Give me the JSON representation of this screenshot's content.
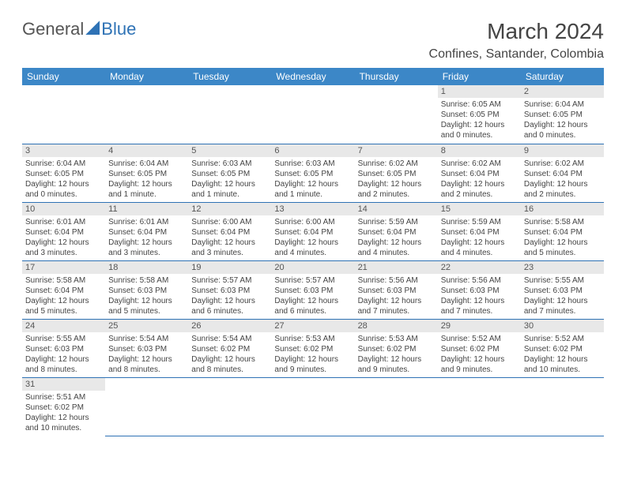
{
  "logo": {
    "text1": "General",
    "text2": "Blue"
  },
  "title": "March 2024",
  "location": "Confines, Santander, Colombia",
  "colors": {
    "header_bg": "#3c87c7",
    "header_text": "#ffffff",
    "daynum_bg": "#e8e8e8",
    "row_border": "#2e72b5",
    "logo_accent": "#2e72b5"
  },
  "weekdays": [
    "Sunday",
    "Monday",
    "Tuesday",
    "Wednesday",
    "Thursday",
    "Friday",
    "Saturday"
  ],
  "calendar": {
    "first_weekday_index": 5,
    "days": [
      {
        "n": 1,
        "sunrise": "6:05 AM",
        "sunset": "6:05 PM",
        "daylight": "12 hours and 0 minutes."
      },
      {
        "n": 2,
        "sunrise": "6:04 AM",
        "sunset": "6:05 PM",
        "daylight": "12 hours and 0 minutes."
      },
      {
        "n": 3,
        "sunrise": "6:04 AM",
        "sunset": "6:05 PM",
        "daylight": "12 hours and 0 minutes."
      },
      {
        "n": 4,
        "sunrise": "6:04 AM",
        "sunset": "6:05 PM",
        "daylight": "12 hours and 1 minute."
      },
      {
        "n": 5,
        "sunrise": "6:03 AM",
        "sunset": "6:05 PM",
        "daylight": "12 hours and 1 minute."
      },
      {
        "n": 6,
        "sunrise": "6:03 AM",
        "sunset": "6:05 PM",
        "daylight": "12 hours and 1 minute."
      },
      {
        "n": 7,
        "sunrise": "6:02 AM",
        "sunset": "6:05 PM",
        "daylight": "12 hours and 2 minutes."
      },
      {
        "n": 8,
        "sunrise": "6:02 AM",
        "sunset": "6:04 PM",
        "daylight": "12 hours and 2 minutes."
      },
      {
        "n": 9,
        "sunrise": "6:02 AM",
        "sunset": "6:04 PM",
        "daylight": "12 hours and 2 minutes."
      },
      {
        "n": 10,
        "sunrise": "6:01 AM",
        "sunset": "6:04 PM",
        "daylight": "12 hours and 3 minutes."
      },
      {
        "n": 11,
        "sunrise": "6:01 AM",
        "sunset": "6:04 PM",
        "daylight": "12 hours and 3 minutes."
      },
      {
        "n": 12,
        "sunrise": "6:00 AM",
        "sunset": "6:04 PM",
        "daylight": "12 hours and 3 minutes."
      },
      {
        "n": 13,
        "sunrise": "6:00 AM",
        "sunset": "6:04 PM",
        "daylight": "12 hours and 4 minutes."
      },
      {
        "n": 14,
        "sunrise": "5:59 AM",
        "sunset": "6:04 PM",
        "daylight": "12 hours and 4 minutes."
      },
      {
        "n": 15,
        "sunrise": "5:59 AM",
        "sunset": "6:04 PM",
        "daylight": "12 hours and 4 minutes."
      },
      {
        "n": 16,
        "sunrise": "5:58 AM",
        "sunset": "6:04 PM",
        "daylight": "12 hours and 5 minutes."
      },
      {
        "n": 17,
        "sunrise": "5:58 AM",
        "sunset": "6:04 PM",
        "daylight": "12 hours and 5 minutes."
      },
      {
        "n": 18,
        "sunrise": "5:58 AM",
        "sunset": "6:03 PM",
        "daylight": "12 hours and 5 minutes."
      },
      {
        "n": 19,
        "sunrise": "5:57 AM",
        "sunset": "6:03 PM",
        "daylight": "12 hours and 6 minutes."
      },
      {
        "n": 20,
        "sunrise": "5:57 AM",
        "sunset": "6:03 PM",
        "daylight": "12 hours and 6 minutes."
      },
      {
        "n": 21,
        "sunrise": "5:56 AM",
        "sunset": "6:03 PM",
        "daylight": "12 hours and 7 minutes."
      },
      {
        "n": 22,
        "sunrise": "5:56 AM",
        "sunset": "6:03 PM",
        "daylight": "12 hours and 7 minutes."
      },
      {
        "n": 23,
        "sunrise": "5:55 AM",
        "sunset": "6:03 PM",
        "daylight": "12 hours and 7 minutes."
      },
      {
        "n": 24,
        "sunrise": "5:55 AM",
        "sunset": "6:03 PM",
        "daylight": "12 hours and 8 minutes."
      },
      {
        "n": 25,
        "sunrise": "5:54 AM",
        "sunset": "6:03 PM",
        "daylight": "12 hours and 8 minutes."
      },
      {
        "n": 26,
        "sunrise": "5:54 AM",
        "sunset": "6:02 PM",
        "daylight": "12 hours and 8 minutes."
      },
      {
        "n": 27,
        "sunrise": "5:53 AM",
        "sunset": "6:02 PM",
        "daylight": "12 hours and 9 minutes."
      },
      {
        "n": 28,
        "sunrise": "5:53 AM",
        "sunset": "6:02 PM",
        "daylight": "12 hours and 9 minutes."
      },
      {
        "n": 29,
        "sunrise": "5:52 AM",
        "sunset": "6:02 PM",
        "daylight": "12 hours and 9 minutes."
      },
      {
        "n": 30,
        "sunrise": "5:52 AM",
        "sunset": "6:02 PM",
        "daylight": "12 hours and 10 minutes."
      },
      {
        "n": 31,
        "sunrise": "5:51 AM",
        "sunset": "6:02 PM",
        "daylight": "12 hours and 10 minutes."
      }
    ]
  },
  "labels": {
    "sunrise": "Sunrise:",
    "sunset": "Sunset:",
    "daylight": "Daylight:"
  }
}
